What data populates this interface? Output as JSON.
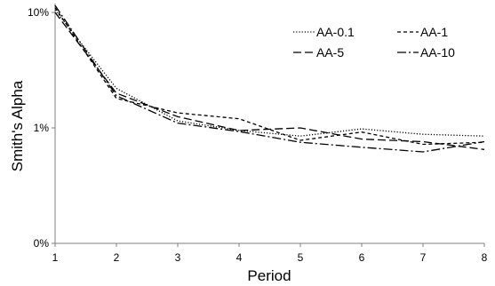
{
  "chart_data": {
    "type": "line",
    "title": "",
    "xlabel": "Period",
    "ylabel": "Smith's Alpha",
    "x": [
      1,
      2,
      3,
      4,
      5,
      6,
      7,
      8
    ],
    "xlim": [
      1,
      8
    ],
    "yscale": "log",
    "ylim": [
      0.0001,
      0.1
    ],
    "y_ticks": [
      {
        "value": 0.1,
        "label": "10%"
      },
      {
        "value": 0.01,
        "label": "1%"
      },
      {
        "value": 0.001,
        "label": "0%"
      }
    ],
    "grid": false,
    "legend_position": "top-right",
    "series": [
      {
        "name": "AA-0.1",
        "dash": "dotted",
        "values": [
          0.105,
          0.022,
          0.0115,
          0.0095,
          0.0085,
          0.0098,
          0.0088,
          0.0085
        ]
      },
      {
        "name": "AA-1",
        "dash": "dashed",
        "values": [
          0.11,
          0.018,
          0.0135,
          0.012,
          0.0078,
          0.0092,
          0.0072,
          0.0075
        ]
      },
      {
        "name": "AA-5",
        "dash": "longdash",
        "values": [
          0.1,
          0.02,
          0.0125,
          0.0095,
          0.01,
          0.008,
          0.0076,
          0.0065
        ]
      },
      {
        "name": "AA-10",
        "dash": "dashdot",
        "values": [
          0.115,
          0.019,
          0.011,
          0.0093,
          0.0075,
          0.0068,
          0.0062,
          0.0076
        ]
      }
    ]
  }
}
